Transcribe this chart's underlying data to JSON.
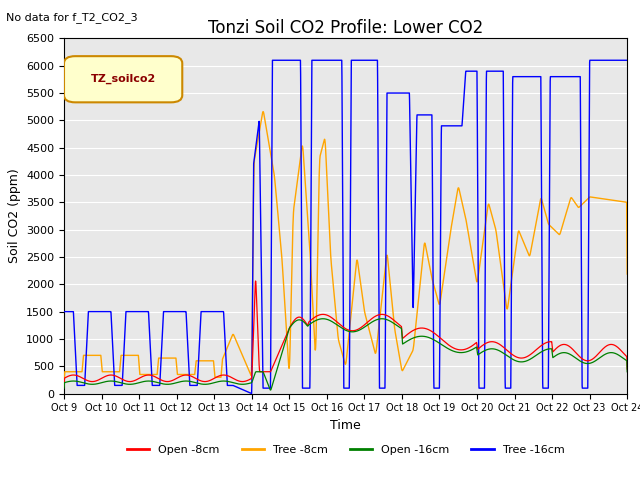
{
  "title": "Tonzi Soil CO2 Profile: Lower CO2",
  "subtitle": "No data for f_T2_CO2_3",
  "ylabel": "Soil CO2 (ppm)",
  "xlabel": "Time",
  "legend_label": "TZ_soilco2",
  "legend_entries": [
    "Open -8cm",
    "Tree -8cm",
    "Open -16cm",
    "Tree -16cm"
  ],
  "legend_colors": [
    "red",
    "orange",
    "green",
    "blue"
  ],
  "ylim": [
    0,
    6500
  ],
  "yticks": [
    0,
    500,
    1000,
    1500,
    2000,
    2500,
    3000,
    3500,
    4000,
    4500,
    5000,
    5500,
    6000,
    6500
  ],
  "plot_bg_color": "#e8e8e8",
  "grid_color": "white",
  "title_fontsize": 12,
  "axis_fontsize": 9,
  "tick_fontsize": 8
}
